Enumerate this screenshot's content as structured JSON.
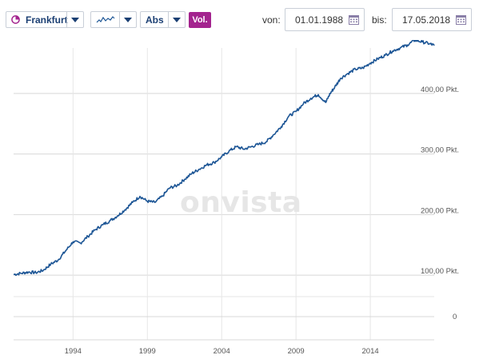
{
  "toolbar": {
    "exchange": "Frankfurt",
    "chart_type_icon": "line-chart-icon",
    "scale": "Abs",
    "volume_toggle": "Vol.",
    "from_label": "von:",
    "from_date": "01.01.1988",
    "to_label": "bis:",
    "to_date": "17.05.2018",
    "calendar_icon": "calendar-icon"
  },
  "watermark": "onvista",
  "colors": {
    "line": "#1c5595",
    "accent": "#a3238e",
    "grid": "#d8d8d8",
    "brand": "#1b3f73"
  },
  "chart_data": {
    "type": "line",
    "title": "",
    "xlabel": "",
    "ylabel": "",
    "xlim": [
      1990,
      2018.3
    ],
    "ylim": [
      75,
      475
    ],
    "x_ticks": [
      1994,
      1999,
      2004,
      2009,
      2014
    ],
    "x_tick_labels": [
      "1994",
      "1999",
      "2004",
      "2009",
      "2014"
    ],
    "y_ticks": [
      100,
      200,
      300,
      400
    ],
    "y_tick_labels": [
      "100,00 Pkt.",
      "200,00 Pkt.",
      "300,00 Pkt.",
      "400,00 Pkt."
    ],
    "grid": true,
    "series": [
      {
        "name": "",
        "x": [
          1990.0,
          1990.5,
          1991.0,
          1991.5,
          1992.0,
          1992.5,
          1993.0,
          1993.5,
          1994.0,
          1994.5,
          1995.0,
          1995.5,
          1996.0,
          1996.5,
          1997.0,
          1997.5,
          1998.0,
          1998.5,
          1999.0,
          1999.5,
          2000.0,
          2000.5,
          2001.0,
          2001.5,
          2002.0,
          2002.5,
          2003.0,
          2003.5,
          2004.0,
          2004.5,
          2005.0,
          2005.5,
          2006.0,
          2006.5,
          2007.0,
          2007.5,
          2008.0,
          2008.5,
          2009.0,
          2009.5,
          2010.0,
          2010.5,
          2011.0,
          2011.3,
          2011.6,
          2012.0,
          2012.5,
          2013.0,
          2013.5,
          2014.0,
          2014.5,
          2015.0,
          2015.5,
          2016.0,
          2016.5,
          2017.0,
          2017.5,
          2018.0,
          2018.3
        ],
        "y": [
          101,
          103,
          105,
          104,
          108,
          118,
          125,
          140,
          155,
          153,
          164,
          175,
          183,
          190,
          198,
          208,
          220,
          230,
          222,
          220,
          230,
          244,
          248,
          258,
          268,
          275,
          282,
          286,
          295,
          305,
          312,
          308,
          312,
          316,
          320,
          332,
          345,
          362,
          370,
          383,
          392,
          398,
          385,
          400,
          410,
          425,
          433,
          440,
          442,
          450,
          457,
          463,
          470,
          475,
          480,
          488,
          485,
          482,
          479
        ]
      }
    ],
    "lower_panel": {
      "y_tick_label": "0"
    }
  }
}
